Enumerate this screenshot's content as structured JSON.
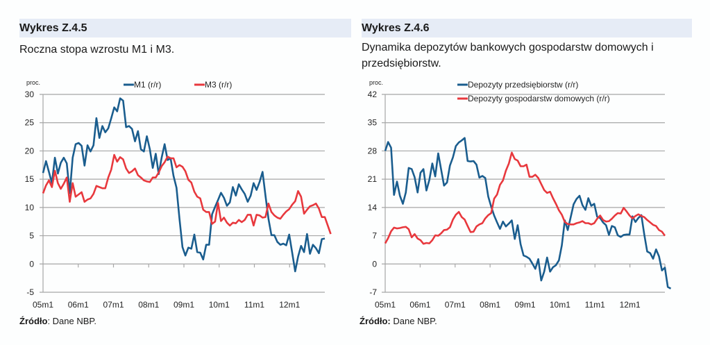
{
  "chart_data": [
    {
      "id": "z45",
      "type": "line",
      "heading": "Wykres Z.4.5",
      "title": "Roczna stopa wzrostu M1 i M3.",
      "ylabel": "proc.",
      "xlabel": "",
      "ylim": [
        -5,
        30
      ],
      "yticks": [
        "30",
        "25",
        "20",
        "15",
        "10",
        "5",
        "0",
        "-5"
      ],
      "ytick_values": [
        30,
        25,
        20,
        15,
        10,
        5,
        0,
        -5
      ],
      "xtick_labels": [
        "05m1",
        "06m1",
        "07m1",
        "08m1",
        "09m1",
        "10m1",
        "11m1",
        "12m1"
      ],
      "months": 96,
      "grid": true,
      "legend_position": "top-center",
      "series": [
        {
          "name": "M1 (r/r)",
          "color": "#1a5d8e",
          "values": [
            16.1,
            18.2,
            16.3,
            14.3,
            18.8,
            16.0,
            17.9,
            18.8,
            17.8,
            12.5,
            18.8,
            21.2,
            21.4,
            20.9,
            17.4,
            21.0,
            19.9,
            21.0,
            25.8,
            22.3,
            24.4,
            23.3,
            24.0,
            25.8,
            27.7,
            27.0,
            29.3,
            28.9,
            24.2,
            24.4,
            23.9,
            21.7,
            23.5,
            20.3,
            19.9,
            22.6,
            20.3,
            17.0,
            19.5,
            15.9,
            18.8,
            21.2,
            18.4,
            18.7,
            15.6,
            13.5,
            8.0,
            3.0,
            1.5,
            2.9,
            2.7,
            5.2,
            2.1,
            2.0,
            0.8,
            3.4,
            3.4,
            8.8,
            10.1,
            11.3,
            12.6,
            11.7,
            10.3,
            10.9,
            13.6,
            12.1,
            14.1,
            13.2,
            12.4,
            11.0,
            12.1,
            14.3,
            13.1,
            14.5,
            16.3,
            12.1,
            8.0,
            5.1,
            5.1,
            3.9,
            3.4,
            3.6,
            3.3,
            5.2,
            2.0,
            -1.3,
            1.3,
            3.2,
            2.1,
            5.3,
            1.8,
            3.4,
            2.8,
            1.9,
            4.4,
            4.5
          ]
        },
        {
          "name": "M3 (r/r)",
          "color": "#e8383d",
          "values": [
            12.5,
            13.9,
            14.8,
            13.6,
            16.5,
            14.3,
            13.3,
            14.2,
            15.3,
            11.0,
            14.3,
            11.9,
            12.3,
            12.7,
            11.0,
            11.4,
            11.6,
            12.4,
            13.8,
            13.6,
            13.4,
            13.4,
            15.3,
            16.7,
            19.3,
            18.1,
            18.9,
            18.5,
            16.9,
            16.1,
            16.4,
            16.9,
            15.7,
            15.3,
            14.8,
            14.6,
            14.5,
            15.3,
            15.3,
            16.2,
            17.3,
            18.0,
            19.0,
            18.7,
            18.7,
            17.1,
            17.5,
            17.2,
            16.4,
            14.9,
            14.4,
            12.8,
            11.9,
            11.6,
            9.6,
            9.2,
            9.2,
            7.1,
            7.5,
            10.8,
            7.6,
            8.2,
            7.3,
            6.8,
            7.3,
            7.2,
            7.8,
            7.4,
            7.8,
            8.7,
            8.7,
            6.8,
            8.7,
            8.6,
            8.2,
            8.3,
            10.7,
            9.2,
            8.6,
            8.2,
            8.0,
            8.7,
            9.3,
            9.7,
            10.5,
            11.1,
            12.9,
            11.9,
            8.9,
            9.6,
            10.2,
            10.4,
            10.7,
            9.8,
            8.3,
            8.3,
            6.8,
            5.3
          ]
        }
      ]
    },
    {
      "id": "z46",
      "type": "line",
      "heading": "Wykres Z.4.6",
      "title": "Dynamika depozytów bankowych gospodarstw domowych i przedsiębiorstw.",
      "ylabel": "proc.",
      "xlabel": "",
      "ylim": [
        -7,
        42
      ],
      "yticks": [
        "42",
        "35",
        "28",
        "21",
        "14",
        "7",
        "0",
        "-7"
      ],
      "ytick_values": [
        42,
        35,
        28,
        21,
        14,
        7,
        0,
        -7
      ],
      "xtick_labels": [
        "05m1",
        "06m1",
        "07m1",
        "08m1",
        "09m1",
        "10m1",
        "11m1",
        "12m1"
      ],
      "months": 96,
      "grid": true,
      "legend_position": "top-center",
      "series": [
        {
          "name": "Depozyty przedsiębiorstw (r/r)",
          "color": "#1a5d8e",
          "values": [
            28.0,
            30.2,
            28.8,
            17.1,
            20.4,
            16.9,
            14.9,
            17.7,
            23.8,
            23.5,
            21.5,
            17.7,
            22.6,
            23.5,
            18.2,
            20.8,
            24.9,
            21.7,
            27.4,
            23.4,
            19.4,
            20.2,
            24.4,
            26.4,
            29.2,
            30.1,
            30.6,
            31.2,
            25.5,
            25.4,
            25.5,
            24.6,
            21.4,
            21.8,
            21.3,
            16.7,
            14.2,
            12.0,
            10.3,
            8.7,
            10.5,
            9.3,
            10.0,
            10.8,
            6.2,
            9.6,
            4.9,
            2.1,
            1.8,
            1.3,
            0.1,
            -1.2,
            1.2,
            -4.1,
            -1.9,
            1.6,
            -1.9,
            -0.8,
            -0.3,
            0.9,
            4.6,
            10.8,
            8.4,
            11.6,
            14.8,
            16.1,
            16.9,
            14.6,
            13.4,
            16.3,
            14.4,
            14.9,
            11.7,
            11.4,
            10.3,
            9.6,
            7.2,
            9.4,
            9.1,
            7.1,
            6.7,
            7.2,
            7.3,
            7.3,
            11.8,
            10.4,
            11.4,
            12.1,
            7.3,
            3.1,
            2.7,
            1.3,
            3.6,
            1.9,
            -1.6,
            -0.9,
            -5.7,
            -6.1
          ]
        },
        {
          "name": "Depozyty gospodarstw domowych (r/r)",
          "color": "#e8383d",
          "values": [
            5.1,
            6.4,
            8.1,
            9.0,
            8.8,
            8.9,
            9.1,
            9.2,
            8.6,
            6.6,
            7.4,
            6.3,
            5.9,
            5.0,
            5.2,
            5.1,
            5.9,
            7.1,
            7.0,
            7.6,
            8.4,
            8.5,
            9.1,
            11.0,
            12.2,
            12.9,
            11.6,
            11.0,
            9.4,
            7.9,
            8.0,
            9.3,
            9.8,
            10.1,
            11.3,
            12.1,
            12.6,
            16.2,
            17.2,
            19.6,
            20.7,
            23.1,
            24.9,
            27.6,
            26.0,
            25.6,
            24.2,
            24.2,
            24.6,
            21.6,
            21.6,
            22.1,
            21.3,
            19.8,
            18.3,
            17.6,
            17.9,
            16.3,
            14.9,
            13.3,
            12.2,
            10.4,
            9.9,
            9.8,
            9.8,
            10.1,
            10.3,
            10.6,
            10.1,
            10.1,
            9.8,
            10.1,
            11.2,
            12.0,
            10.9,
            10.5,
            10.6,
            11.2,
            12.0,
            12.6,
            12.5,
            13.9,
            13.0,
            12.0,
            11.3,
            11.9,
            12.3,
            11.9,
            11.6,
            10.9,
            10.3,
            9.7,
            9.4,
            8.4,
            8.0,
            7.0
          ]
        }
      ]
    }
  ],
  "panels": {
    "left": {
      "heading": "Wykres Z.4.5",
      "subtitle": "Roczna stopa wzrostu M1 i M3.",
      "source_label": "Źródło",
      "source_text": ": Dane NBP."
    },
    "right": {
      "heading": "Wykres Z.4.6",
      "subtitle": "Dynamika depozytów bankowych gospodarstw domowych i przedsiębiorstw.",
      "source_label": "Źródło:",
      "source_text": " Dane NBP."
    }
  }
}
